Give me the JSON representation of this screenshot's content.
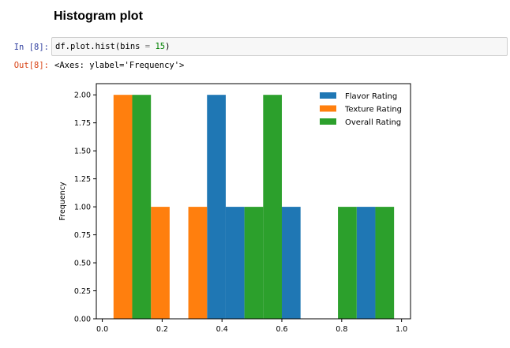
{
  "notebook": {
    "heading": "Histogram plot",
    "cell": {
      "in_prompt": "In [8]:",
      "code_parts": [
        "df.plot.hist(bins ",
        "=",
        " ",
        "15",
        ")"
      ],
      "out_prompt": "Out[8]:",
      "output_text": "<Axes: ylabel='Frequency'>"
    }
  },
  "chart_data": {
    "type": "bar",
    "title": "",
    "xlabel": "",
    "ylabel": "Frequency",
    "xlim": [
      -0.02,
      1.03
    ],
    "ylim": [
      0,
      2.1
    ],
    "xticks": [
      "0.0",
      "0.2",
      "0.4",
      "0.6",
      "0.8",
      "1.0"
    ],
    "yticks": [
      "0.00",
      "0.25",
      "0.50",
      "0.75",
      "1.00",
      "1.25",
      "1.50",
      "1.75",
      "2.00"
    ],
    "legend_position": "top-right",
    "bin_edges": [
      0.0375,
      0.1,
      0.1625,
      0.225,
      0.2875,
      0.35,
      0.4125,
      0.475,
      0.5375,
      0.6,
      0.6625,
      0.725,
      0.7875,
      0.85,
      0.9125,
      0.975
    ],
    "series": [
      {
        "name": "Flavor Rating",
        "color": "#1f77b4",
        "counts": [
          0,
          0,
          0,
          0,
          0,
          2,
          1,
          0,
          0,
          1,
          0,
          0,
          0,
          1,
          0
        ]
      },
      {
        "name": "Texture Rating",
        "color": "#ff7f0e",
        "counts": [
          2,
          0,
          1,
          0,
          1,
          0,
          0,
          0,
          0,
          0,
          0,
          0,
          0,
          0,
          0
        ]
      },
      {
        "name": "Overall Rating",
        "color": "#2ca02c",
        "counts": [
          0,
          2,
          0,
          0,
          0,
          0,
          0,
          1,
          2,
          0,
          0,
          0,
          1,
          0,
          1
        ]
      }
    ]
  }
}
